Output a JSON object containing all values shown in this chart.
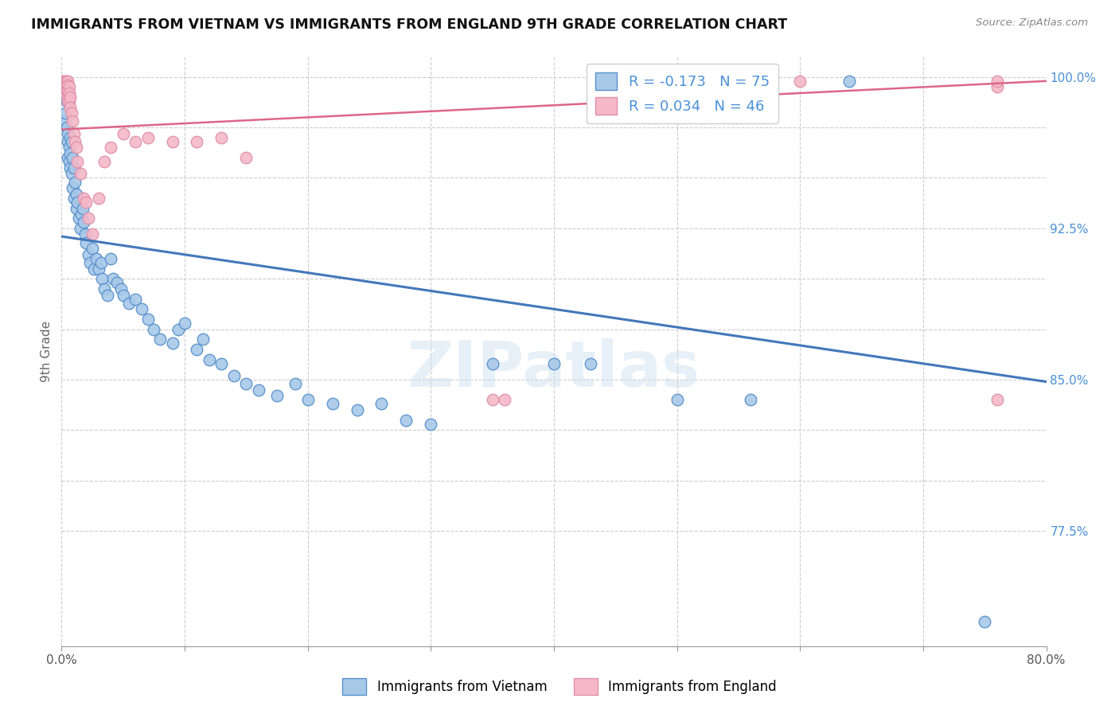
{
  "title": "IMMIGRANTS FROM VIETNAM VS IMMIGRANTS FROM ENGLAND 9TH GRADE CORRELATION CHART",
  "source": "Source: ZipAtlas.com",
  "ylabel": "9th Grade",
  "x_min": 0.0,
  "x_max": 0.8,
  "y_min": 0.718,
  "y_max": 1.01,
  "r_blue": -0.173,
  "n_blue": 75,
  "r_pink": 0.034,
  "n_pink": 46,
  "blue_color": "#a8c8e8",
  "pink_color": "#f4b8c8",
  "blue_edge_color": "#5590cc",
  "pink_edge_color": "#e090a8",
  "blue_line_color": "#4477bb",
  "pink_line_color": "#dd6688",
  "watermark": "ZIPatlas",
  "legend_blue_label": "Immigrants from Vietnam",
  "legend_pink_label": "Immigrants from England",
  "blue_line_x0": 0.0,
  "blue_line_x1": 0.8,
  "blue_line_y0": 0.921,
  "blue_line_y1": 0.849,
  "pink_line_x0": 0.0,
  "pink_line_x1": 0.8,
  "pink_line_y0": 0.974,
  "pink_line_y1": 0.998,
  "blue_scatter_x": [
    0.002,
    0.003,
    0.004,
    0.004,
    0.005,
    0.005,
    0.005,
    0.006,
    0.006,
    0.007,
    0.007,
    0.007,
    0.008,
    0.008,
    0.009,
    0.009,
    0.01,
    0.01,
    0.011,
    0.012,
    0.012,
    0.013,
    0.014,
    0.015,
    0.016,
    0.017,
    0.018,
    0.019,
    0.02,
    0.022,
    0.023,
    0.025,
    0.026,
    0.028,
    0.03,
    0.032,
    0.033,
    0.035,
    0.037,
    0.04,
    0.042,
    0.045,
    0.048,
    0.05,
    0.055,
    0.06,
    0.065,
    0.07,
    0.075,
    0.08,
    0.09,
    0.095,
    0.1,
    0.11,
    0.115,
    0.12,
    0.13,
    0.14,
    0.15,
    0.16,
    0.175,
    0.19,
    0.2,
    0.22,
    0.24,
    0.26,
    0.28,
    0.3,
    0.35,
    0.4,
    0.43,
    0.5,
    0.56,
    0.64,
    0.75
  ],
  "blue_scatter_y": [
    0.978,
    0.982,
    0.975,
    0.988,
    0.972,
    0.968,
    0.96,
    0.965,
    0.958,
    0.97,
    0.962,
    0.955,
    0.968,
    0.952,
    0.96,
    0.945,
    0.955,
    0.94,
    0.948,
    0.942,
    0.935,
    0.938,
    0.93,
    0.925,
    0.932,
    0.935,
    0.928,
    0.922,
    0.918,
    0.912,
    0.908,
    0.915,
    0.905,
    0.91,
    0.905,
    0.908,
    0.9,
    0.895,
    0.892,
    0.91,
    0.9,
    0.898,
    0.895,
    0.892,
    0.888,
    0.89,
    0.885,
    0.88,
    0.875,
    0.87,
    0.868,
    0.875,
    0.878,
    0.865,
    0.87,
    0.86,
    0.858,
    0.852,
    0.848,
    0.845,
    0.842,
    0.848,
    0.84,
    0.838,
    0.835,
    0.838,
    0.83,
    0.828,
    0.858,
    0.858,
    0.858,
    0.84,
    0.84,
    0.998,
    0.73
  ],
  "pink_scatter_x": [
    0.001,
    0.002,
    0.002,
    0.003,
    0.003,
    0.003,
    0.004,
    0.004,
    0.004,
    0.005,
    0.005,
    0.005,
    0.005,
    0.005,
    0.006,
    0.006,
    0.006,
    0.007,
    0.007,
    0.008,
    0.009,
    0.01,
    0.011,
    0.012,
    0.013,
    0.015,
    0.018,
    0.02,
    0.022,
    0.025,
    0.03,
    0.035,
    0.04,
    0.05,
    0.06,
    0.07,
    0.09,
    0.11,
    0.13,
    0.15,
    0.35,
    0.36,
    0.6,
    0.76,
    0.76,
    0.76
  ],
  "pink_scatter_y": [
    0.998,
    0.998,
    0.995,
    0.998,
    0.995,
    0.992,
    0.998,
    0.996,
    0.993,
    0.998,
    0.996,
    0.993,
    0.99,
    0.988,
    0.995,
    0.992,
    0.988,
    0.99,
    0.985,
    0.982,
    0.978,
    0.972,
    0.968,
    0.965,
    0.958,
    0.952,
    0.94,
    0.938,
    0.93,
    0.922,
    0.94,
    0.958,
    0.965,
    0.972,
    0.968,
    0.97,
    0.968,
    0.968,
    0.97,
    0.96,
    0.84,
    0.84,
    0.998,
    0.84,
    0.995,
    0.998
  ],
  "y_tick_positions": [
    0.775,
    0.8,
    0.825,
    0.85,
    0.875,
    0.9,
    0.925,
    0.95,
    0.975,
    1.0
  ],
  "y_tick_labels": [
    "77.5%",
    "",
    "",
    "85.0%",
    "",
    "",
    "92.5%",
    "",
    "",
    "100.0%"
  ],
  "x_tick_positions": [
    0.0,
    0.1,
    0.2,
    0.3,
    0.4,
    0.5,
    0.6,
    0.7,
    0.8
  ],
  "x_tick_labels": [
    "0.0%",
    "",
    "",
    "",
    "",
    "",
    "",
    "",
    "80.0%"
  ],
  "grid_y_positions": [
    0.775,
    0.8,
    0.825,
    0.85,
    0.875,
    0.9,
    0.925,
    0.95,
    0.975,
    1.0
  ]
}
